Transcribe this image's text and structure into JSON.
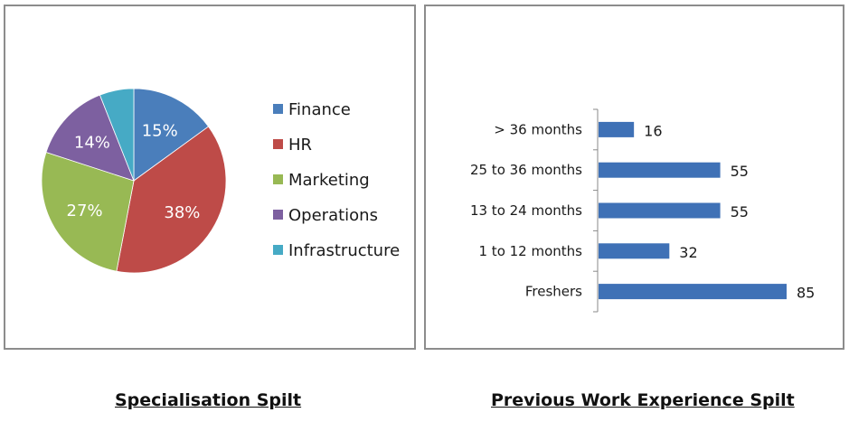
{
  "captions": {
    "left": "Specialisation Spilt",
    "right": "Previous Work Experience Spilt"
  },
  "chart_data": [
    {
      "type": "pie",
      "legend_position": "right",
      "slices": [
        {
          "label": "Finance",
          "value": 15,
          "display": "15%",
          "color": "#4a7ebb"
        },
        {
          "label": "HR",
          "value": 38,
          "display": "38%",
          "color": "#be4b48"
        },
        {
          "label": "Marketing",
          "value": 27,
          "display": "27%",
          "color": "#98b954"
        },
        {
          "label": "Operations",
          "value": 14,
          "display": "14%",
          "color": "#7d60a0"
        },
        {
          "label": "Infrastructure",
          "value": 6,
          "display": "",
          "color": "#46aac5"
        }
      ]
    },
    {
      "type": "bar",
      "orientation": "horizontal",
      "grid": false,
      "bar_color": "#3f71b6",
      "categories": [
        "> 36 months",
        "25 to 36 months",
        "13 to 24 months",
        "1 to 12 months",
        "Freshers"
      ],
      "values": [
        16,
        55,
        55,
        32,
        85
      ],
      "xlim": [
        0,
        85
      ]
    }
  ]
}
